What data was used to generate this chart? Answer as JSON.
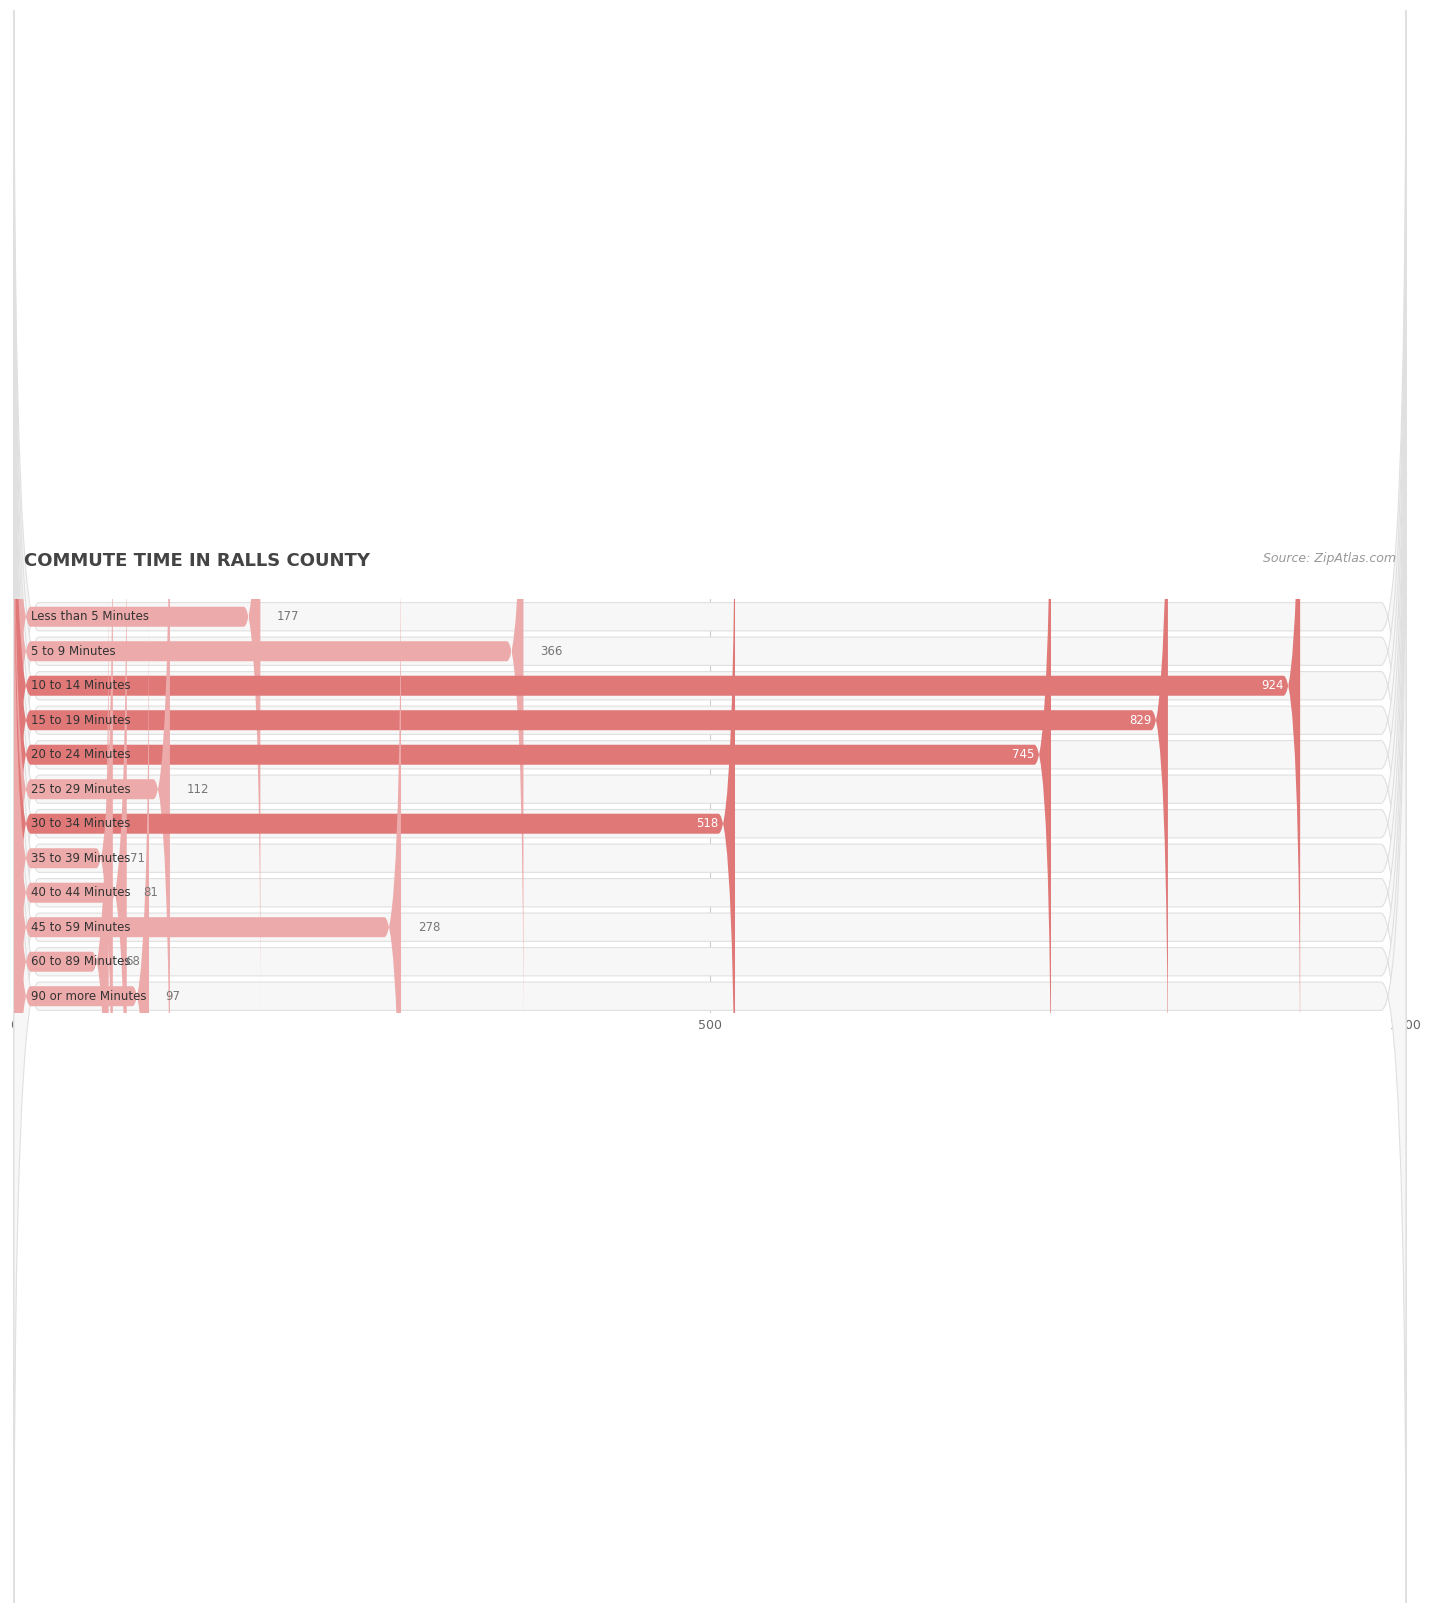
{
  "title": "COMMUTE TIME IN RALLS COUNTY",
  "source": "Source: ZipAtlas.com",
  "categories": [
    "Less than 5 Minutes",
    "5 to 9 Minutes",
    "10 to 14 Minutes",
    "15 to 19 Minutes",
    "20 to 24 Minutes",
    "25 to 29 Minutes",
    "30 to 34 Minutes",
    "35 to 39 Minutes",
    "40 to 44 Minutes",
    "45 to 59 Minutes",
    "60 to 89 Minutes",
    "90 or more Minutes"
  ],
  "values": [
    177,
    366,
    924,
    829,
    745,
    112,
    518,
    71,
    81,
    278,
    68,
    97
  ],
  "bar_color_dark": "#e07878",
  "bar_color_light": "#edaaaa",
  "label_color_inside": "#ffffff",
  "label_color_outside": "#777777",
  "background_color": "#ffffff",
  "row_bg_color": "#f7f7f7",
  "row_border_color": "#e0e0e0",
  "xlim": [
    0,
    1000
  ],
  "xticks": [
    0,
    500,
    1000
  ],
  "title_fontsize": 13,
  "cat_fontsize": 8.5,
  "value_fontsize": 8.5,
  "source_fontsize": 9,
  "threshold_inside": 500,
  "dark_threshold": 400
}
